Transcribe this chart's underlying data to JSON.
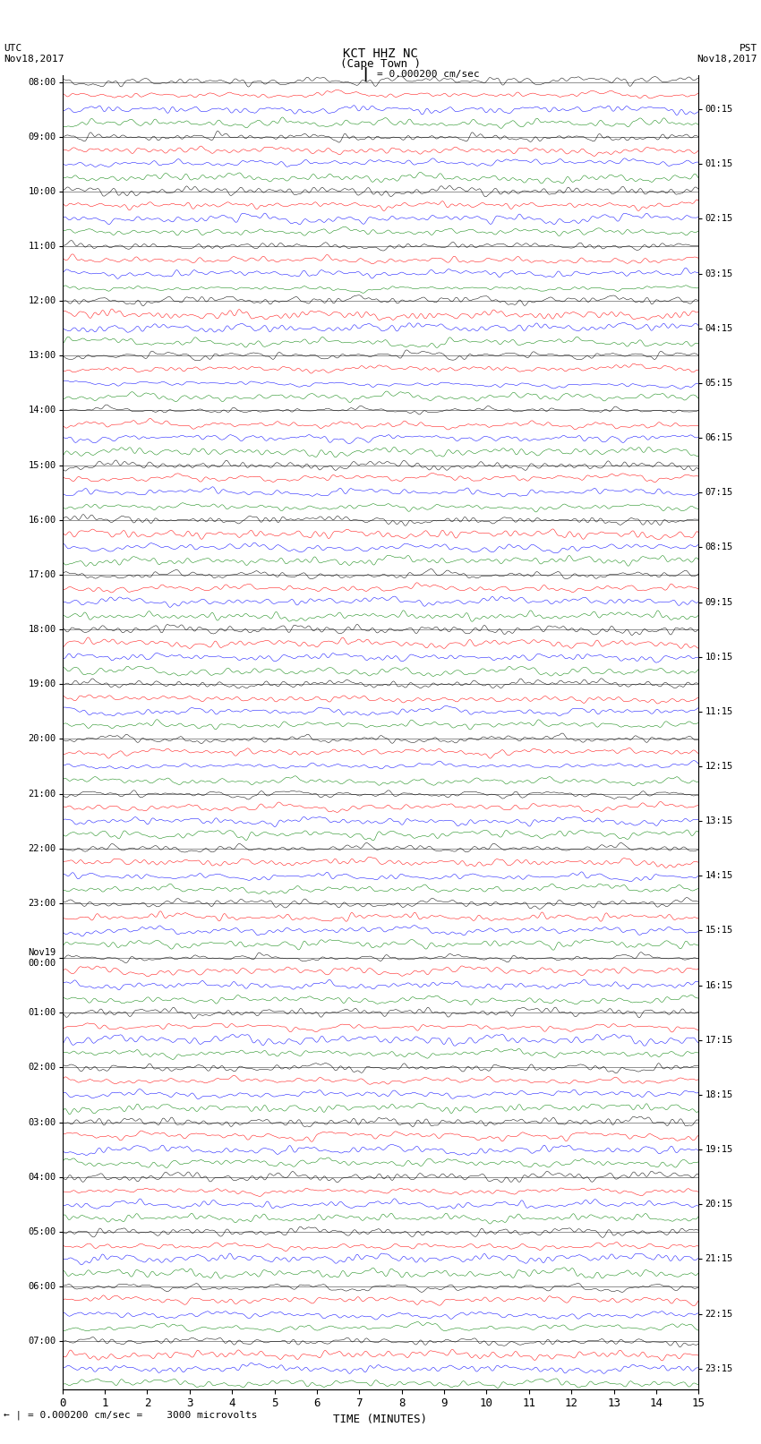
{
  "title_line1": "KCT HHZ NC",
  "title_line2": "(Cape Town )",
  "scale_text": "= 0.000200 cm/sec",
  "bottom_scale_text": "= 0.000200 cm/sec =    3000 microvolts",
  "left_header_1": "UTC",
  "left_header_2": "Nov18,2017",
  "right_header_1": "PST",
  "right_header_2": "Nov18,2017",
  "xlabel": "TIME (MINUTES)",
  "left_times": [
    "08:00",
    "09:00",
    "10:00",
    "11:00",
    "12:00",
    "13:00",
    "14:00",
    "15:00",
    "16:00",
    "17:00",
    "18:00",
    "19:00",
    "20:00",
    "21:00",
    "22:00",
    "23:00",
    "Nov19\n00:00",
    "01:00",
    "02:00",
    "03:00",
    "04:00",
    "05:00",
    "06:00",
    "07:00"
  ],
  "right_times": [
    "00:15",
    "01:15",
    "02:15",
    "03:15",
    "04:15",
    "05:15",
    "06:15",
    "07:15",
    "08:15",
    "09:15",
    "10:15",
    "11:15",
    "12:15",
    "13:15",
    "14:15",
    "15:15",
    "16:15",
    "17:15",
    "18:15",
    "19:15",
    "20:15",
    "21:15",
    "22:15",
    "23:15"
  ],
  "xticks": [
    0,
    1,
    2,
    3,
    4,
    5,
    6,
    7,
    8,
    9,
    10,
    11,
    12,
    13,
    14,
    15
  ],
  "n_hours": 24,
  "traces_per_hour": 4,
  "colors_per_hour": [
    "black",
    "red",
    "blue",
    "green"
  ],
  "bg_color": "white",
  "figsize": [
    8.5,
    16.13
  ],
  "dpi": 100,
  "n_pts": 3000,
  "trace_amp": 0.42,
  "separator_color": "black",
  "separator_lw": 0.5
}
